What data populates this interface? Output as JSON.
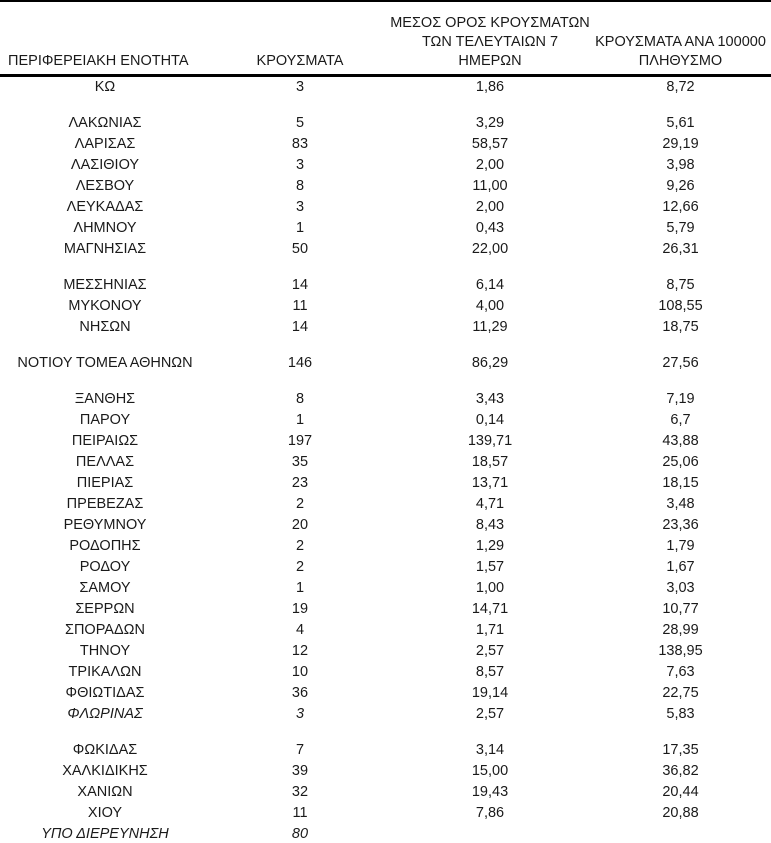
{
  "page": {
    "background": "#ffffff",
    "text_color": "#1a1a1a",
    "border_color": "#000000"
  },
  "table": {
    "header": {
      "region": "ΠΕΡΙΦΕΡΕΙΑΚΗ ΕΝΟΤΗΤΑ",
      "cases": "ΚΡΟΥΣΜΑΤΑ",
      "avg7": "ΜΕΣΟΣ ΟΡΟΣ ΚΡΟΥΣΜΑΤΩΝ\nΤΩΝ ΤΕΛΕΥΤΑΙΩΝ 7\nΗΜΕΡΩΝ",
      "per100k": "ΚΡΟΥΣΜΑΤΑ ΑΝΑ 100000\nΠΛΗΘΥΣΜΟ"
    },
    "rows": [
      {
        "region": "ΚΩ",
        "cases": "3",
        "avg7": "1,86",
        "per100k": "8,72"
      },
      {
        "region": "ΛΑΚΩΝΙΑΣ",
        "cases": "5",
        "avg7": "3,29",
        "per100k": "5,61",
        "gap_before": true
      },
      {
        "region": "ΛΑΡΙΣΑΣ",
        "cases": "83",
        "avg7": "58,57",
        "per100k": "29,19"
      },
      {
        "region": "ΛΑΣΙΘΙΟΥ",
        "cases": "3",
        "avg7": "2,00",
        "per100k": "3,98"
      },
      {
        "region": "ΛΕΣΒΟΥ",
        "cases": "8",
        "avg7": "11,00",
        "per100k": "9,26"
      },
      {
        "region": "ΛΕΥΚΑΔΑΣ",
        "cases": "3",
        "avg7": "2,00",
        "per100k": "12,66"
      },
      {
        "region": "ΛΗΜΝΟΥ",
        "cases": "1",
        "avg7": "0,43",
        "per100k": "5,79"
      },
      {
        "region": "ΜΑΓΝΗΣΙΑΣ",
        "cases": "50",
        "avg7": "22,00",
        "per100k": "26,31"
      },
      {
        "region": "ΜΕΣΣΗΝΙΑΣ",
        "cases": "14",
        "avg7": "6,14",
        "per100k": "8,75",
        "gap_before": true
      },
      {
        "region": "ΜΥΚΟΝΟΥ",
        "cases": "11",
        "avg7": "4,00",
        "per100k": "108,55"
      },
      {
        "region": "ΝΗΣΩΝ",
        "cases": "14",
        "avg7": "11,29",
        "per100k": "18,75"
      },
      {
        "region": "ΝΟΤΙΟΥ ΤΟΜΕΑ ΑΘΗΝΩΝ",
        "cases": "146",
        "avg7": "86,29",
        "per100k": "27,56",
        "gap_before": true
      },
      {
        "region": "ΞΑΝΘΗΣ",
        "cases": "8",
        "avg7": "3,43",
        "per100k": "7,19",
        "gap_before": true
      },
      {
        "region": "ΠΑΡΟΥ",
        "cases": "1",
        "avg7": "0,14",
        "per100k": "6,7"
      },
      {
        "region": "ΠΕΙΡΑΙΩΣ",
        "cases": "197",
        "avg7": "139,71",
        "per100k": "43,88"
      },
      {
        "region": "ΠΕΛΛΑΣ",
        "cases": "35",
        "avg7": "18,57",
        "per100k": "25,06"
      },
      {
        "region": "ΠΙΕΡΙΑΣ",
        "cases": "23",
        "avg7": "13,71",
        "per100k": "18,15"
      },
      {
        "region": "ΠΡΕΒΕΖΑΣ",
        "cases": "2",
        "avg7": "4,71",
        "per100k": "3,48"
      },
      {
        "region": "ΡΕΘΥΜΝΟΥ",
        "cases": "20",
        "avg7": "8,43",
        "per100k": "23,36"
      },
      {
        "region": "ΡΟΔΟΠΗΣ",
        "cases": "2",
        "avg7": "1,29",
        "per100k": "1,79"
      },
      {
        "region": "ΡΟΔΟΥ",
        "cases": "2",
        "avg7": "1,57",
        "per100k": "1,67"
      },
      {
        "region": "ΣΑΜΟΥ",
        "cases": "1",
        "avg7": "1,00",
        "per100k": "3,03"
      },
      {
        "region": "ΣΕΡΡΩΝ",
        "cases": "19",
        "avg7": "14,71",
        "per100k": "10,77"
      },
      {
        "region": "ΣΠΟΡΑΔΩΝ",
        "cases": "4",
        "avg7": "1,71",
        "per100k": "28,99"
      },
      {
        "region": "ΤΗΝΟΥ",
        "cases": "12",
        "avg7": "2,57",
        "per100k": "138,95"
      },
      {
        "region": "ΤΡΙΚΑΛΩΝ",
        "cases": "10",
        "avg7": "8,57",
        "per100k": "7,63"
      },
      {
        "region": "ΦΘΙΩΤΙΔΑΣ",
        "cases": "36",
        "avg7": "19,14",
        "per100k": "22,75"
      },
      {
        "region": "ΦΛΩΡΙΝΑΣ",
        "cases": "3",
        "avg7": "2,57",
        "per100k": "5,83",
        "italic": true
      },
      {
        "region": "ΦΩΚΙΔΑΣ",
        "cases": "7",
        "avg7": "3,14",
        "per100k": "17,35",
        "gap_before": true
      },
      {
        "region": "ΧΑΛΚΙΔΙΚΗΣ",
        "cases": "39",
        "avg7": "15,00",
        "per100k": "36,82"
      },
      {
        "region": "ΧΑΝΙΩΝ",
        "cases": "32",
        "avg7": "19,43",
        "per100k": "20,44"
      },
      {
        "region": "ΧΙΟΥ",
        "cases": "11",
        "avg7": "7,86",
        "per100k": "20,88"
      },
      {
        "region": "ΥΠΟ ΔΙΕΡΕΥΝΗΣΗ",
        "cases": "80",
        "avg7": "",
        "per100k": "",
        "italic": true
      }
    ]
  }
}
